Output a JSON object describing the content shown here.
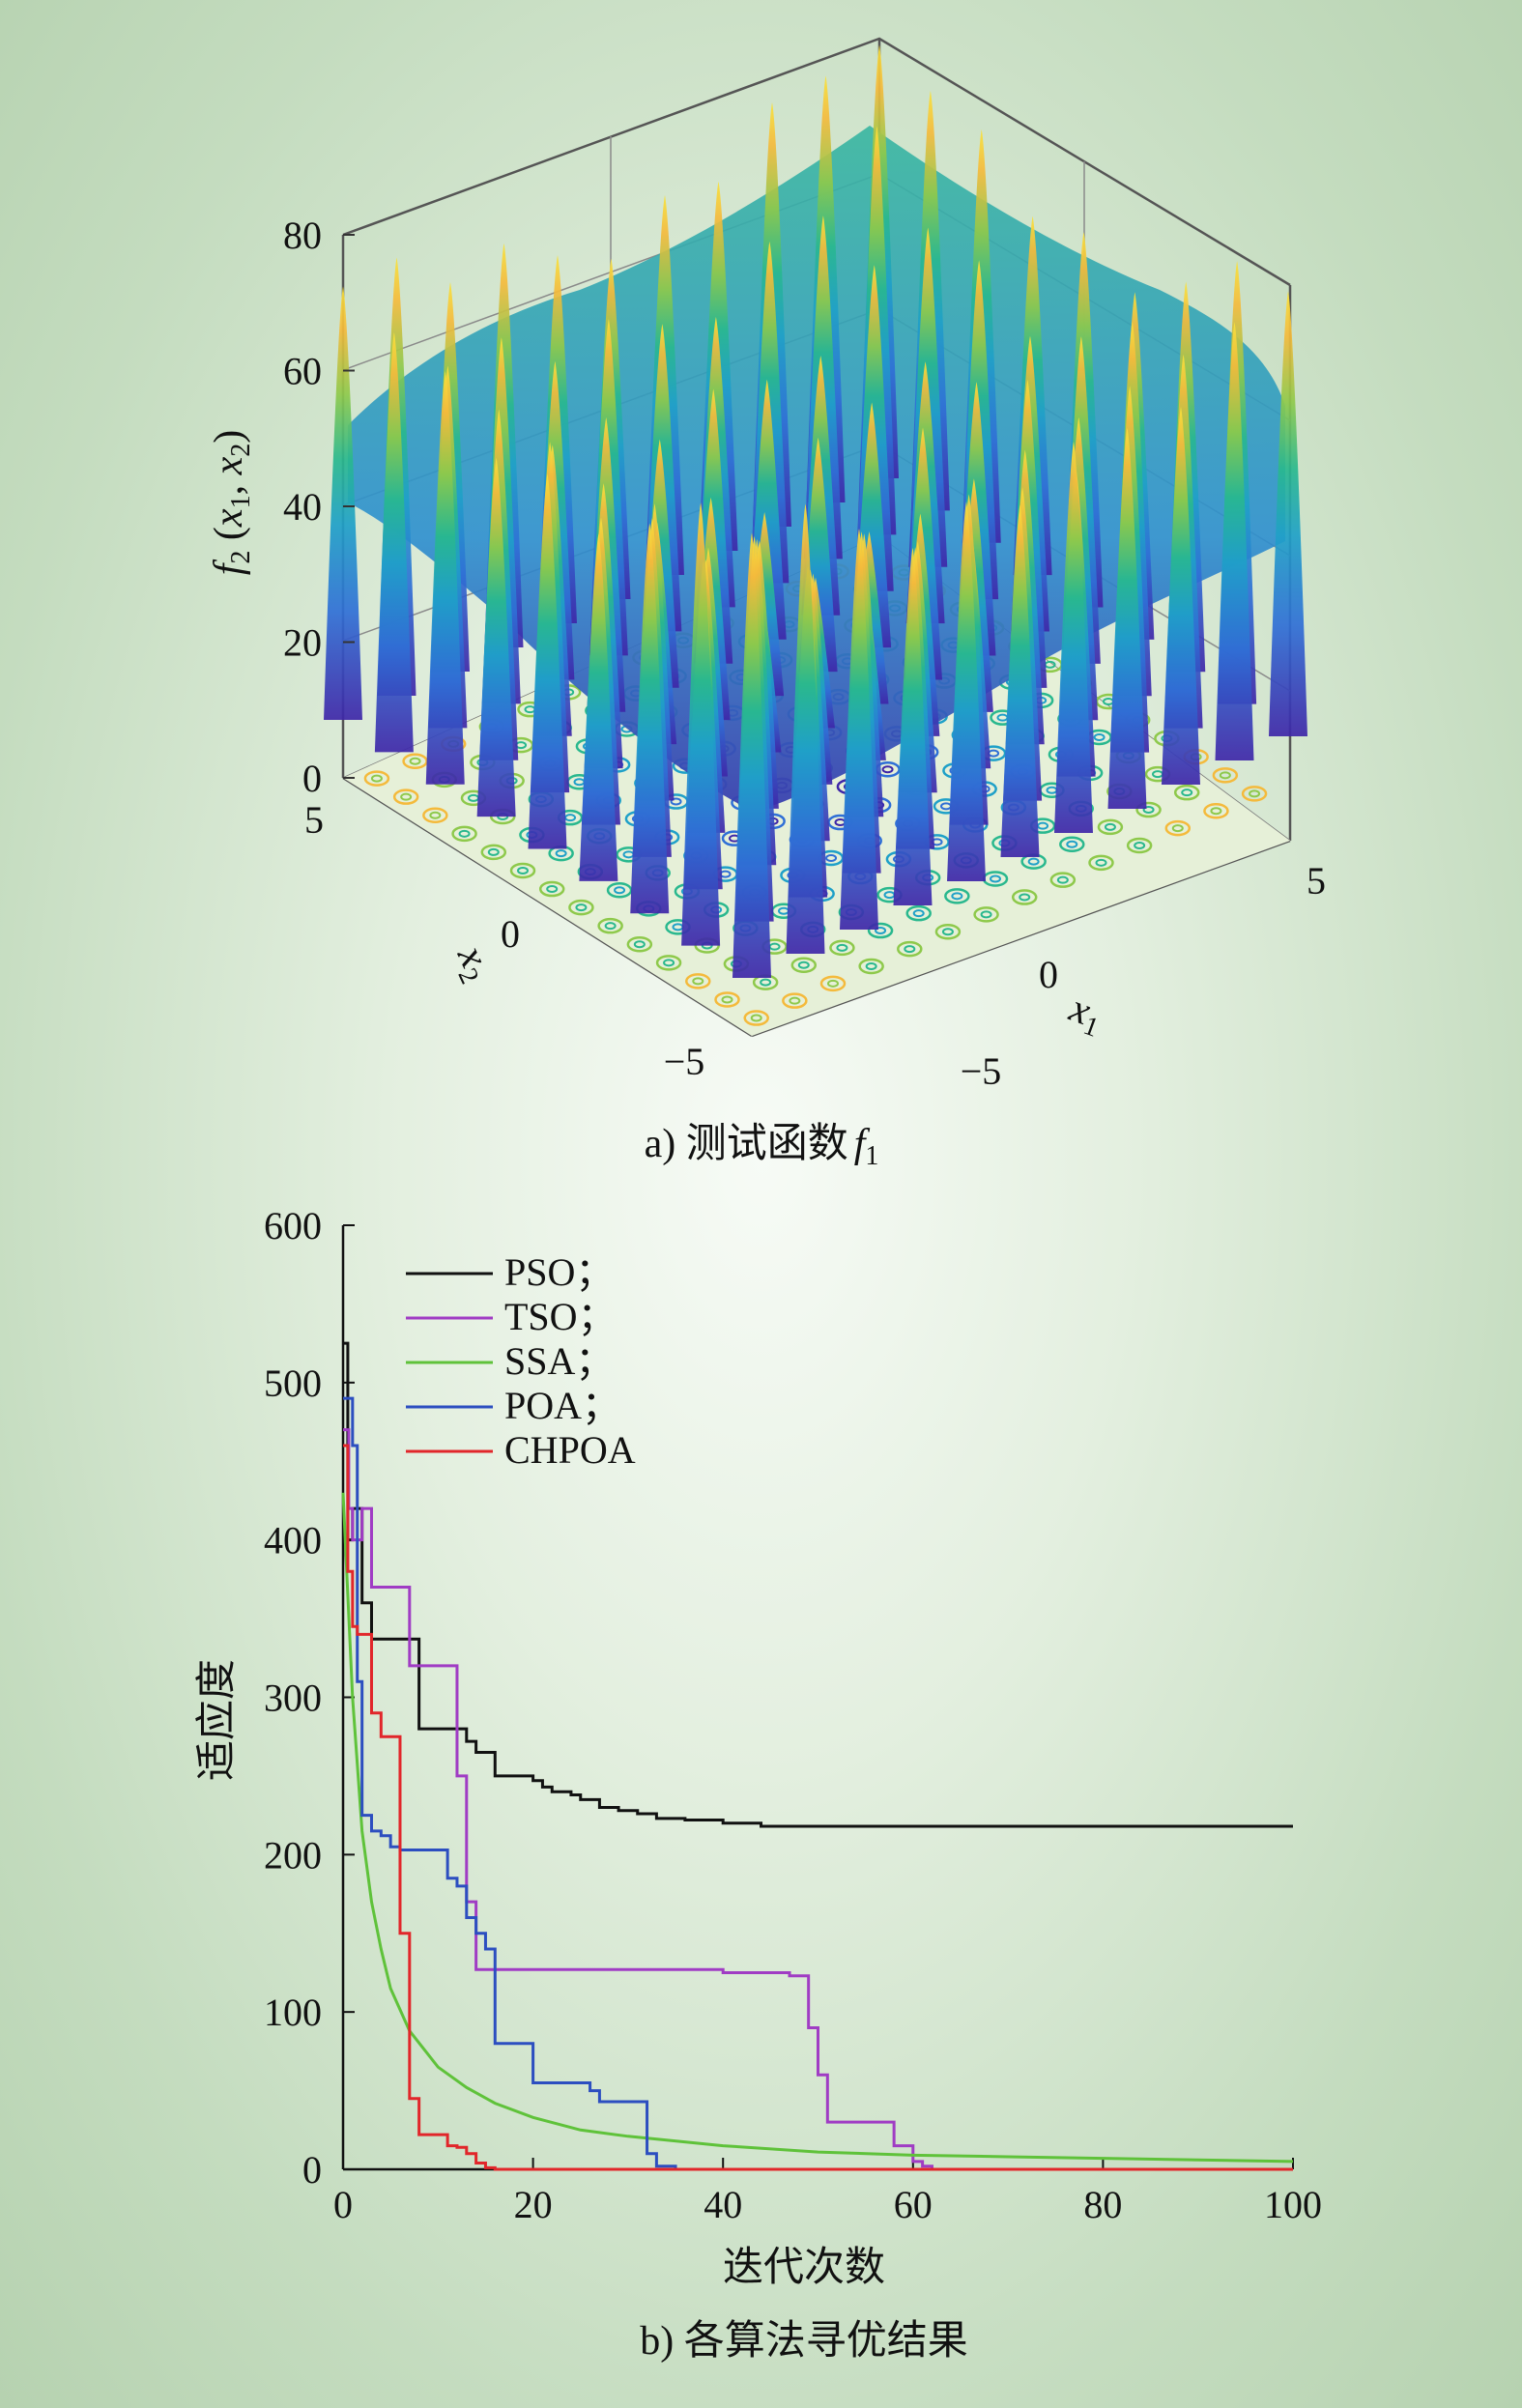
{
  "chart_data": [
    {
      "type": "surface",
      "caption": "a) 测试函数",
      "caption_symbol": "f",
      "caption_sub": "1",
      "zlabel": {
        "f": "f",
        "fsub": "2",
        "open": " (",
        "x1": "x",
        "x1sub": "1",
        "sep": ", ",
        "x2": "x",
        "x2sub": "2",
        "close": ")"
      },
      "xlabel": {
        "base": "x",
        "sub": "1"
      },
      "ylabel": {
        "base": "x",
        "sub": "2"
      },
      "zticks": [
        "0",
        "20",
        "40",
        "60",
        "80"
      ],
      "zlim": [
        0,
        80
      ],
      "xticks": [
        "−5",
        "0",
        "5"
      ],
      "yticks": [
        "−5",
        "0",
        "5"
      ],
      "xlim": [
        -5,
        5
      ],
      "ylim": [
        -5,
        5
      ],
      "colormap": [
        "#3e26a8",
        "#2f6fd6",
        "#1fa0c8",
        "#29b88e",
        "#8ec94b",
        "#f4ba3c",
        "#f9e33b"
      ]
    },
    {
      "type": "line",
      "caption": "b) 各算法寻优结果",
      "xlabel": "迭代次数",
      "ylabel": "适应度",
      "xlim": [
        0,
        100
      ],
      "ylim": [
        0,
        600
      ],
      "xticks": [
        "0",
        "20",
        "40",
        "60",
        "80",
        "100"
      ],
      "yticks": [
        "0",
        "100",
        "200",
        "300",
        "400",
        "500",
        "600"
      ],
      "legend_position": "top-left",
      "series": [
        {
          "name": "PSO；",
          "color": "#111111",
          "x": [
            0,
            0.5,
            1,
            2,
            3,
            7,
            8,
            12,
            13,
            14,
            16,
            19,
            20,
            21,
            22,
            24,
            25,
            27,
            29,
            31,
            33,
            36,
            40,
            44,
            50,
            60,
            80,
            100
          ],
          "y": [
            525,
            400,
            420,
            360,
            337,
            337,
            280,
            280,
            272,
            265,
            250,
            250,
            247,
            243,
            240,
            238,
            235,
            230,
            228,
            226,
            223,
            222,
            220,
            218,
            218,
            218,
            218,
            218
          ]
        },
        {
          "name": "TSO；",
          "color": "#a03cc4",
          "x": [
            0,
            0.6,
            1,
            2,
            3,
            6,
            7,
            11,
            12,
            13,
            14,
            20,
            30,
            40,
            47,
            48,
            49,
            50,
            51,
            56,
            58,
            60,
            61,
            62,
            63,
            80,
            100
          ],
          "y": [
            470,
            420,
            400,
            420,
            370,
            370,
            320,
            320,
            250,
            170,
            127,
            127,
            127,
            125,
            123,
            123,
            90,
            60,
            30,
            30,
            15,
            5,
            2,
            0,
            0,
            0,
            0
          ]
        },
        {
          "name": "SSA；",
          "color": "#5fc23a",
          "x": [
            0,
            1,
            2,
            3,
            4,
            5,
            7,
            10,
            13,
            16,
            20,
            25,
            30,
            40,
            50,
            60,
            70,
            80,
            90,
            100
          ],
          "y": [
            430,
            300,
            215,
            170,
            140,
            115,
            88,
            65,
            52,
            42,
            33,
            25,
            21,
            15,
            11,
            9,
            8,
            7,
            6,
            5
          ]
        },
        {
          "name": "POA；",
          "color": "#2c4ec0",
          "x": [
            0,
            1,
            1.5,
            2,
            3,
            4,
            5,
            6,
            7,
            10,
            11,
            12,
            13,
            14,
            15,
            16,
            17,
            19,
            20,
            21,
            26,
            27,
            31,
            32,
            33,
            35,
            40
          ],
          "y": [
            490,
            460,
            310,
            225,
            215,
            212,
            205,
            203,
            203,
            203,
            185,
            180,
            160,
            150,
            140,
            80,
            80,
            80,
            55,
            55,
            50,
            43,
            43,
            10,
            2,
            0,
            0
          ]
        },
        {
          "name": "CHPOA",
          "color": "#e1262a",
          "x": [
            0,
            0.5,
            1,
            1.5,
            2,
            3,
            4,
            5,
            6,
            7,
            8,
            9,
            10,
            11,
            12,
            13,
            14,
            15,
            16,
            17,
            20,
            40,
            60,
            80,
            100
          ],
          "y": [
            460,
            380,
            345,
            340,
            340,
            290,
            275,
            275,
            150,
            45,
            22,
            22,
            22,
            15,
            14,
            10,
            4,
            1,
            0,
            0,
            0,
            0,
            0,
            0,
            0
          ]
        }
      ]
    }
  ]
}
